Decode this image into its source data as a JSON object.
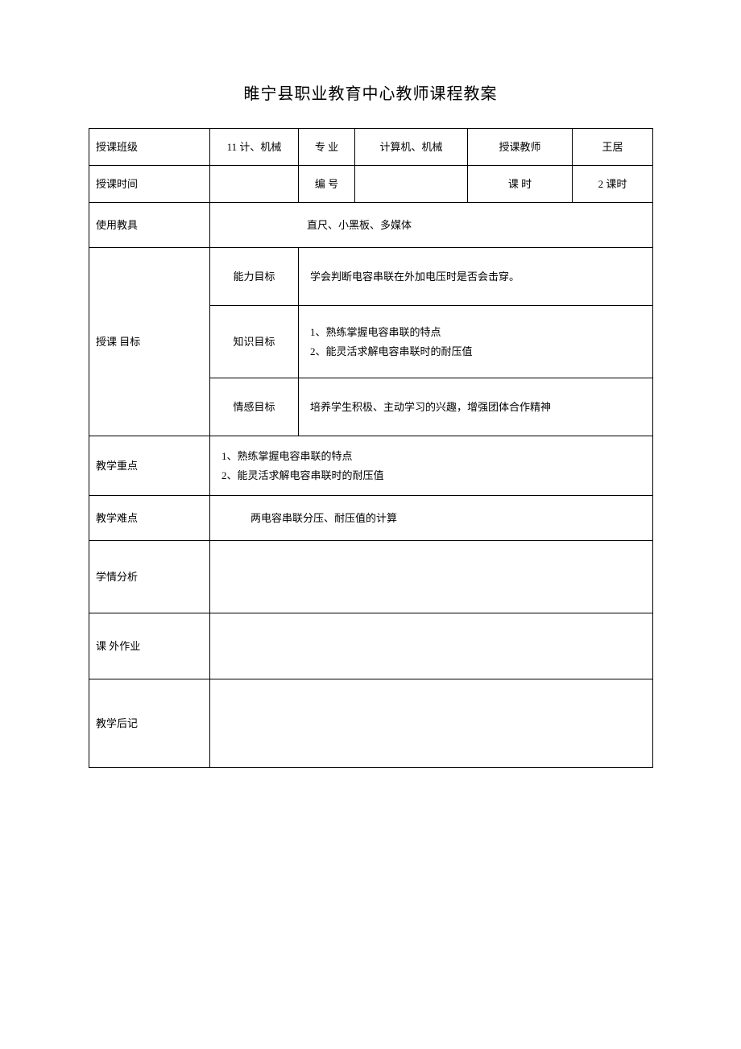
{
  "title": "睢宁县职业教育中心教师课程教案",
  "header": {
    "class_label": "授课班级",
    "class_value": "11 计、机械",
    "major_label": "专 业",
    "major_value": "计算机、机械",
    "teacher_label": "授课教师",
    "teacher_value": "王居",
    "time_label": "授课时间",
    "time_value": "",
    "number_label": "编 号",
    "number_value": "",
    "hours_label": "课  时",
    "hours_value": "2 课时"
  },
  "tools": {
    "label": "使用教具",
    "value": "直尺、小黑板、多媒体"
  },
  "goals": {
    "label": "授课 目标",
    "ability": {
      "label": "能力目标",
      "value": "学会判断电容串联在外加电压时是否会击穿。"
    },
    "knowledge": {
      "label": "知识目标",
      "value": "1、熟练掌握电容串联的特点\n2、能灵活求解电容串联时的耐压值"
    },
    "emotion": {
      "label": "情感目标",
      "value": "培养学生积极、主动学习的兴趣，增强团体合作精神"
    }
  },
  "keypoint": {
    "label": "教学重点",
    "value": "1、熟练掌握电容串联的特点\n2、能灵活求解电容串联时的耐压值"
  },
  "difficulty": {
    "label": "教学难点",
    "value": "两电容串联分压、耐压值的计算"
  },
  "analysis": {
    "label": "学情分析",
    "value": ""
  },
  "homework": {
    "label": "课 外作业",
    "value": ""
  },
  "postnote": {
    "label": "教学后记",
    "value": ""
  }
}
